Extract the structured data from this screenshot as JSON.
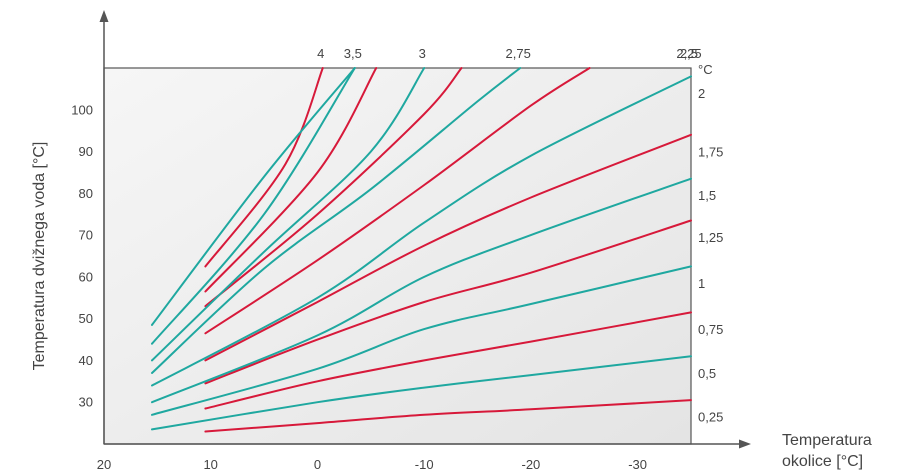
{
  "chart_data": {
    "type": "line",
    "title": "",
    "ylabel": "Temperatura dvižnega voda [°C]",
    "xlabel_line1": "Temperatura",
    "xlabel_line2": "okolice [°C]",
    "right_unit": "°C",
    "xlim": [
      20,
      -35
    ],
    "ylim": [
      20,
      110
    ],
    "grid": false,
    "x_ticks": [
      "20",
      "10",
      "0",
      "-10",
      "-20",
      "-30"
    ],
    "y_ticks": [
      "30",
      "40",
      "50",
      "60",
      "70",
      "80",
      "90",
      "100"
    ],
    "right_labels": [
      "2",
      "1,75",
      "1,5",
      "1,25",
      "1",
      "0,75",
      "0,5",
      "0,25"
    ],
    "top_labels": [
      "4",
      "3,5",
      "3",
      "2,75",
      "2,5",
      "2,25"
    ],
    "colors": {
      "teal": "#1fa8a0",
      "red": "#d7193a",
      "plot_bg": "#eeeeee",
      "axis": "#555555"
    },
    "series": [
      {
        "color": "red",
        "x": [
          10.5,
          0,
          -10,
          -20,
          -35
        ],
        "y": [
          23,
          25,
          27,
          28.3,
          30.5
        ]
      },
      {
        "color": "teal",
        "x": [
          15.5,
          0,
          -10,
          -20,
          -35
        ],
        "y": [
          23.5,
          30,
          33.5,
          36.5,
          41
        ]
      },
      {
        "color": "red",
        "x": [
          10.5,
          0,
          -10,
          -20,
          -35
        ],
        "y": [
          28.5,
          35,
          40,
          44.5,
          51.5
        ]
      },
      {
        "color": "teal",
        "x": [
          15.5,
          0,
          -10,
          -20,
          -35
        ],
        "y": [
          27,
          38,
          47.5,
          53.5,
          62.5
        ]
      },
      {
        "color": "red",
        "x": [
          10.5,
          0,
          -10,
          -20,
          -35
        ],
        "y": [
          34.5,
          45,
          54,
          61,
          73.5
        ]
      },
      {
        "color": "teal",
        "x": [
          15.5,
          0,
          -10,
          -20,
          -35
        ],
        "y": [
          30,
          46,
          60,
          70,
          83.5
        ]
      },
      {
        "color": "red",
        "x": [
          10.5,
          0,
          -10,
          -20,
          -35
        ],
        "y": [
          40,
          54,
          67.5,
          79,
          94
        ]
      },
      {
        "color": "teal",
        "x": [
          15.5,
          0,
          -10,
          -20,
          -35
        ],
        "y": [
          34,
          55,
          73,
          89,
          108
        ]
      },
      {
        "color": "red",
        "x": [
          10.5,
          0,
          -10,
          -20,
          -25.5
        ],
        "y": [
          46.5,
          64,
          82,
          101,
          110
        ]
      },
      {
        "color": "teal",
        "x": [
          15.5,
          5,
          -5,
          -15,
          -19
        ],
        "y": [
          37,
          62,
          81,
          102,
          110
        ]
      },
      {
        "color": "red",
        "x": [
          10.5,
          0,
          -10,
          -13.5
        ],
        "y": [
          53,
          75,
          99,
          110
        ]
      },
      {
        "color": "teal",
        "x": [
          15.5,
          5,
          -5,
          -10
        ],
        "y": [
          40,
          66,
          90,
          110
        ]
      },
      {
        "color": "red",
        "x": [
          10.5,
          0,
          -5.5
        ],
        "y": [
          56.5,
          85,
          110
        ]
      },
      {
        "color": "teal",
        "x": [
          15.5,
          5,
          -3.5
        ],
        "y": [
          44,
          75,
          110
        ]
      },
      {
        "color": "red",
        "x": [
          10.5,
          3,
          -0.5
        ],
        "y": [
          62.5,
          87,
          110
        ]
      },
      {
        "color": "teal",
        "x": [
          15.5,
          5,
          -3.5
        ],
        "y": [
          48.5,
          84,
          110
        ]
      }
    ]
  }
}
